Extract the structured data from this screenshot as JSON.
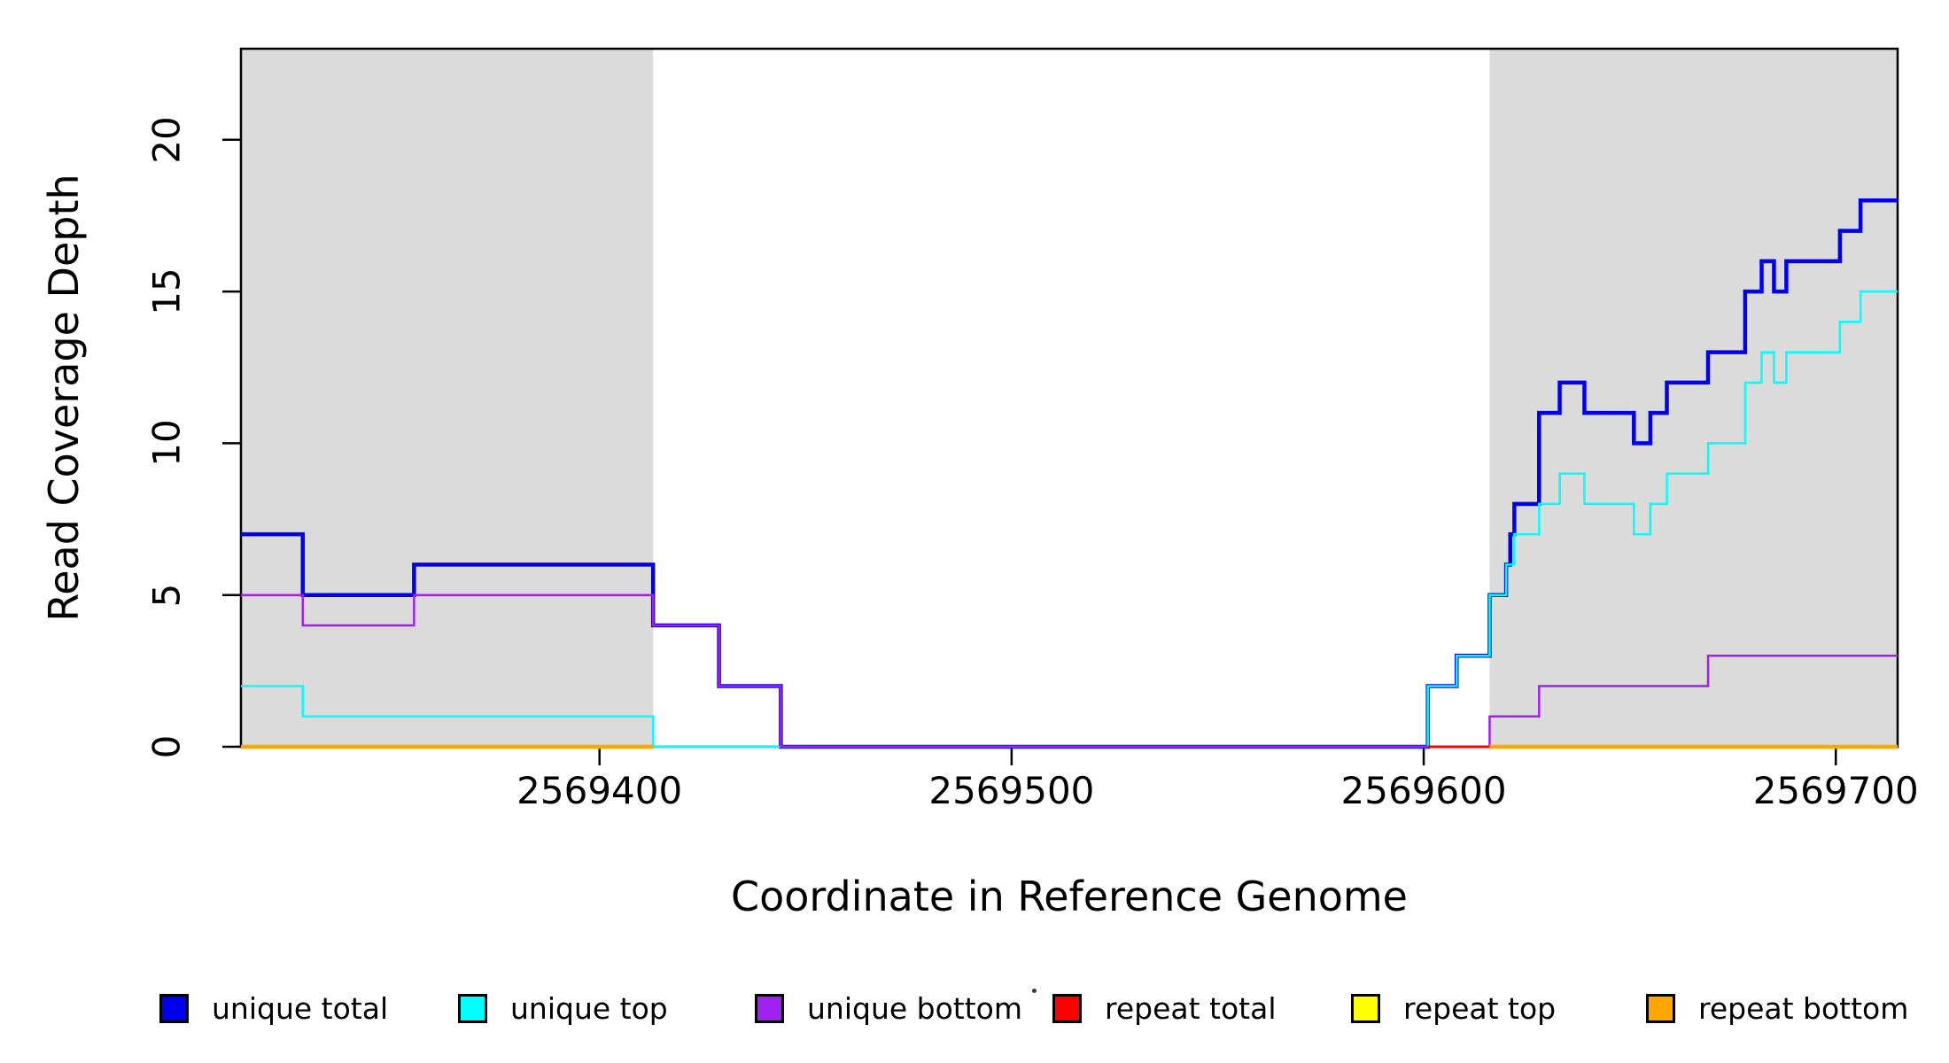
{
  "figure": {
    "background": "#FFFFFF",
    "border_color": "#000000",
    "shade_color": "#DBDBDB"
  },
  "chart_data": {
    "type": "line",
    "subtype": "step-coverage-plot",
    "title": "",
    "xlabel": "Coordinate in Reference Genome",
    "ylabel": "Read Coverage Depth",
    "xlim": [
      2569313,
      2569715
    ],
    "ylim": [
      0,
      23
    ],
    "x_ticks": [
      "2569400",
      "2569500",
      "2569600",
      "2569700"
    ],
    "x_tick_values": [
      2569400,
      2569500,
      2569600,
      2569700
    ],
    "y_ticks": [
      "0",
      "5",
      "10",
      "15",
      "20"
    ],
    "y_tick_values": [
      0,
      5,
      10,
      15,
      20
    ],
    "grid": false,
    "legend_position": "bottom",
    "shade_color": "#DBDBDB",
    "shaded_regions": [
      {
        "label": "repeat-region-left",
        "x0": 2569313,
        "x1": 2569413
      },
      {
        "label": "repeat-region-right",
        "x0": 2569616,
        "x1": 2569715
      }
    ],
    "series": [
      {
        "id": "unique-total",
        "name": "unique total",
        "color": "#0000EE",
        "width": 4.5,
        "xend": 2569715,
        "steps": [
          [
            2569313,
            7
          ],
          [
            2569328,
            5
          ],
          [
            2569355,
            6
          ],
          [
            2569413,
            4
          ],
          [
            2569429,
            2
          ],
          [
            2569444,
            0
          ],
          [
            2569601,
            2
          ],
          [
            2569608,
            3
          ],
          [
            2569616,
            5
          ],
          [
            2569620,
            6
          ],
          [
            2569621,
            7
          ],
          [
            2569622,
            8
          ],
          [
            2569628,
            11
          ],
          [
            2569633,
            12
          ],
          [
            2569639,
            11
          ],
          [
            2569651,
            10
          ],
          [
            2569655,
            11
          ],
          [
            2569659,
            12
          ],
          [
            2569669,
            13
          ],
          [
            2569678,
            15
          ],
          [
            2569682,
            16
          ],
          [
            2569685,
            15
          ],
          [
            2569688,
            16
          ],
          [
            2569701,
            17
          ],
          [
            2569706,
            18
          ]
        ]
      },
      {
        "id": "unique-top",
        "name": "unique top",
        "color": "#00FFFF",
        "width": 2.5,
        "xend": 2569715,
        "steps": [
          [
            2569313,
            2
          ],
          [
            2569328,
            1
          ],
          [
            2569413,
            0
          ],
          [
            2569601,
            2
          ],
          [
            2569608,
            3
          ],
          [
            2569616,
            5
          ],
          [
            2569620,
            6
          ],
          [
            2569622,
            7
          ],
          [
            2569628,
            8
          ],
          [
            2569633,
            9
          ],
          [
            2569639,
            8
          ],
          [
            2569651,
            7
          ],
          [
            2569655,
            8
          ],
          [
            2569659,
            9
          ],
          [
            2569669,
            10
          ],
          [
            2569678,
            12
          ],
          [
            2569682,
            13
          ],
          [
            2569685,
            12
          ],
          [
            2569688,
            13
          ],
          [
            2569701,
            14
          ],
          [
            2569706,
            15
          ]
        ]
      },
      {
        "id": "unique-bottom",
        "name": "unique bottom",
        "color": "#A020F0",
        "width": 2.5,
        "xend": 2569715,
        "steps": [
          [
            2569313,
            5
          ],
          [
            2569328,
            4
          ],
          [
            2569355,
            5
          ],
          [
            2569413,
            4
          ],
          [
            2569429,
            2
          ],
          [
            2569444,
            0
          ],
          [
            2569616,
            1
          ],
          [
            2569628,
            2
          ],
          [
            2569669,
            3
          ]
        ]
      },
      {
        "id": "repeat-total",
        "name": "repeat total",
        "color": "#FF0000",
        "width": 3,
        "value": 0,
        "segments": [
          [
            2569313,
            2569413
          ],
          [
            2569601,
            2569715
          ]
        ]
      },
      {
        "id": "repeat-top",
        "name": "repeat top",
        "color": "#FFFF00",
        "width": 2.5,
        "value": 0,
        "segments": [
          [
            2569313,
            2569413
          ],
          [
            2569616,
            2569715
          ]
        ]
      },
      {
        "id": "repeat-bottom",
        "name": "repeat bottom",
        "color": "#FFA500",
        "width": 4.5,
        "value": 0,
        "segments": [
          [
            2569313,
            2569413
          ],
          [
            2569616,
            2569715
          ]
        ]
      }
    ],
    "legend_items": [
      {
        "label": "unique total",
        "color": "#0000EE"
      },
      {
        "label": "unique top",
        "color": "#00FFFF"
      },
      {
        "label": "unique bottom",
        "color": "#A020F0"
      },
      {
        "label": "repeat total",
        "color": "#FF0000"
      },
      {
        "label": "repeat top",
        "color": "#FFFF00"
      },
      {
        "label": "repeat bottom",
        "color": "#FFA500"
      }
    ]
  }
}
